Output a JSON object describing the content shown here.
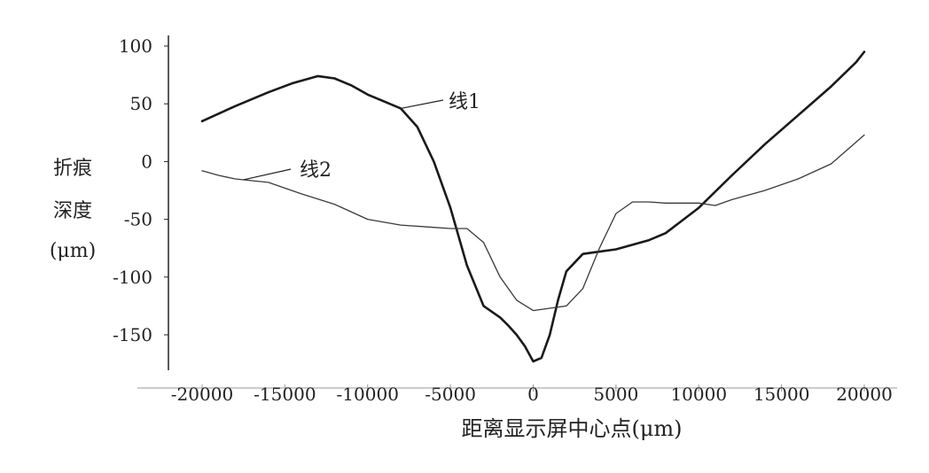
{
  "chart_data": {
    "type": "line",
    "xlabel": "距离显示屏中心点(μm)",
    "ylabel_lines": [
      "折痕",
      "深度",
      "(μm)"
    ],
    "xlim": [
      -20000,
      20000
    ],
    "ylim": [
      -175,
      100
    ],
    "x_ticks": [
      -20000,
      -15000,
      -10000,
      -5000,
      0,
      5000,
      10000,
      15000,
      20000
    ],
    "x_tick_labels": [
      "-20000",
      "-15000",
      "-10000",
      "-5000",
      "0",
      "5000",
      "10000",
      "15000",
      "20000"
    ],
    "y_ticks": [
      100,
      50,
      0,
      -50,
      -100,
      -150
    ],
    "y_tick_labels": [
      "100",
      "50",
      "0",
      "-50",
      "-100",
      "-150"
    ],
    "grid": false,
    "legend": "none",
    "series": [
      {
        "name": "线1",
        "color": "#1a1a1a",
        "points": [
          [
            -20000,
            35
          ],
          [
            -18000,
            48
          ],
          [
            -16000,
            60
          ],
          [
            -14500,
            68
          ],
          [
            -13000,
            74
          ],
          [
            -12000,
            72
          ],
          [
            -11000,
            66
          ],
          [
            -10000,
            58
          ],
          [
            -9000,
            52
          ],
          [
            -8000,
            46
          ],
          [
            -7000,
            30
          ],
          [
            -6000,
            0
          ],
          [
            -5000,
            -40
          ],
          [
            -4000,
            -90
          ],
          [
            -3000,
            -125
          ],
          [
            -2000,
            -135
          ],
          [
            -1500,
            -142
          ],
          [
            -1000,
            -150
          ],
          [
            -500,
            -160
          ],
          [
            0,
            -173
          ],
          [
            500,
            -170
          ],
          [
            1000,
            -150
          ],
          [
            1500,
            -120
          ],
          [
            2000,
            -95
          ],
          [
            3000,
            -80
          ],
          [
            4000,
            -78
          ],
          [
            5000,
            -76
          ],
          [
            7000,
            -68
          ],
          [
            8000,
            -62
          ],
          [
            10000,
            -40
          ],
          [
            12000,
            -12
          ],
          [
            14000,
            15
          ],
          [
            16000,
            40
          ],
          [
            18000,
            65
          ],
          [
            19500,
            86
          ],
          [
            20000,
            95
          ]
        ]
      },
      {
        "name": "线2",
        "color": "#3a3a3a",
        "points": [
          [
            -20000,
            -8
          ],
          [
            -19000,
            -12
          ],
          [
            -18000,
            -15
          ],
          [
            -16000,
            -18
          ],
          [
            -14000,
            -28
          ],
          [
            -12000,
            -37
          ],
          [
            -10000,
            -50
          ],
          [
            -8000,
            -55
          ],
          [
            -6000,
            -57
          ],
          [
            -5000,
            -58
          ],
          [
            -4000,
            -58
          ],
          [
            -3000,
            -70
          ],
          [
            -2000,
            -100
          ],
          [
            -1000,
            -120
          ],
          [
            0,
            -129
          ],
          [
            1000,
            -127
          ],
          [
            2000,
            -125
          ],
          [
            3000,
            -110
          ],
          [
            4000,
            -75
          ],
          [
            5000,
            -45
          ],
          [
            6000,
            -35
          ],
          [
            7000,
            -35
          ],
          [
            8000,
            -36
          ],
          [
            10000,
            -36
          ],
          [
            11000,
            -38
          ],
          [
            12000,
            -33
          ],
          [
            14000,
            -25
          ],
          [
            16000,
            -15
          ],
          [
            18000,
            -2
          ],
          [
            20000,
            23
          ]
        ]
      }
    ],
    "annotations": [
      {
        "text": "线1",
        "series": 0,
        "at_x": -8000
      },
      {
        "text": "线2",
        "series": 1,
        "at_x": -17500
      }
    ]
  }
}
